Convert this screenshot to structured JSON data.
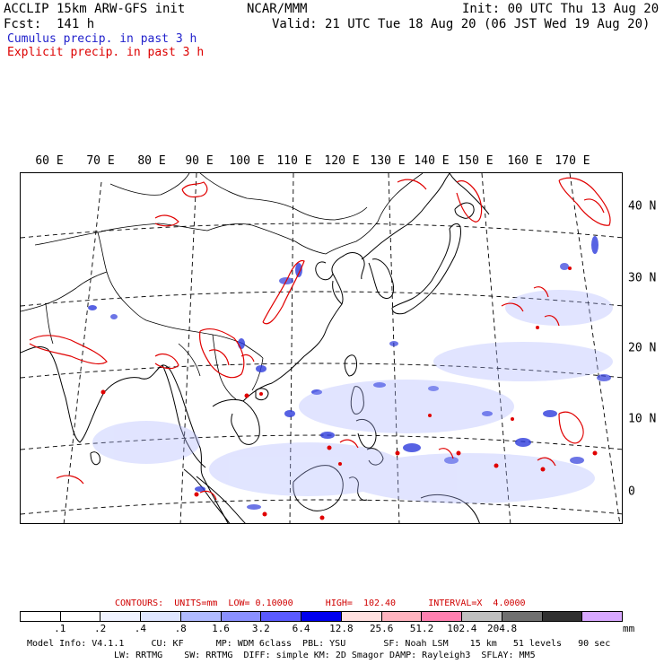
{
  "header": {
    "title_left": "ACCLIP 15km ARW-GFS init",
    "center": "NCAR/MMM",
    "init": "Init: 00 UTC Thu 13 Aug 20",
    "fcst": "Fcst:  141 h",
    "valid": "Valid: 21 UTC Tue 18 Aug 20 (06 JST Wed 19 Aug 20)",
    "legend_cumulus": "Cumulus precip. in past 3 h",
    "legend_explicit": "Explicit precip. in past 3 h",
    "cumulus_color": "#2222cc",
    "explicit_color": "#dd0000"
  },
  "map": {
    "lon_labels": [
      "60 E",
      "70 E",
      "80 E",
      "90 E",
      "100 E",
      "110 E",
      "120 E",
      "130 E",
      "140 E",
      "150 E",
      "160 E",
      "170 E"
    ],
    "lat_labels": [
      "40 N",
      "30 N",
      "20 N",
      "10 N",
      "0"
    ]
  },
  "contours": {
    "text": "CONTOURS:  UNITS=mm  LOW= 0.10000      HIGH=  102.40      INTERVAL=X  4.0000"
  },
  "colorbar": {
    "colors": [
      "#ffffff",
      "#ffffff",
      "#f0f3ff",
      "#dfe6ff",
      "#b0baff",
      "#8a90ff",
      "#5a5aff",
      "#0000ee",
      "#ffe0e0",
      "#ffb3bf",
      "#ff80b0",
      "#c0c0c0",
      "#707070",
      "#303030",
      "#d8a8ff"
    ],
    "labels": [
      ".1",
      ".2",
      ".4",
      ".8",
      "1.6",
      "3.2",
      "6.4",
      "12.8",
      "25.6",
      "51.2",
      "102.4",
      "204.8"
    ],
    "unit": "mm"
  },
  "model_info": {
    "line1": "Model Info: V4.1.1     CU: KF      MP: WDM 6class  PBL: YSU       SF: Noah LSM    15 km   51 levels   90 sec",
    "line2": "LW: RRTMG    SW: RRTMG  DIFF: simple KM: 2D Smagor DAMP: Rayleigh3  SFLAY: MM5"
  }
}
